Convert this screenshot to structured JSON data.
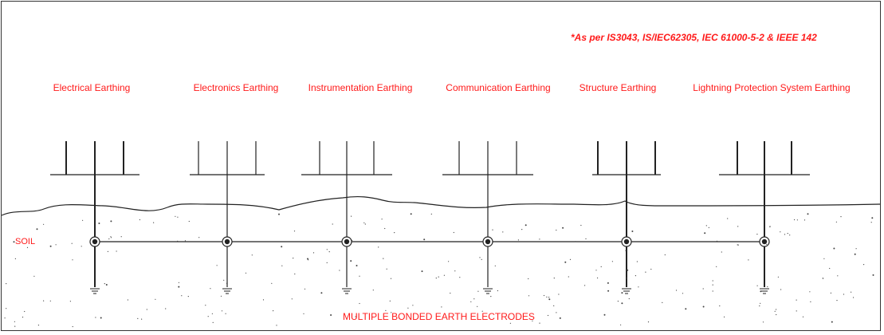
{
  "standards_note": "*As per IS3043, IS/IEC62305, IEC 61000-5-2 & IEEE 142",
  "systems": [
    {
      "label": "Electrical Earthing"
    },
    {
      "label": "Electronics Earthing"
    },
    {
      "label": "Instrumentation Earthing"
    },
    {
      "label": "Communication Earthing"
    },
    {
      "label": "Structure Earthing"
    },
    {
      "label": "Lightning Protection System Earthing"
    }
  ],
  "soil_label": "SOIL",
  "electrodes_label": "MULTIPLE BONDED EARTH ELECTRODES",
  "colors": {
    "label_text": "#ff1a1a",
    "line": "#222222",
    "background": "#ffffff"
  }
}
